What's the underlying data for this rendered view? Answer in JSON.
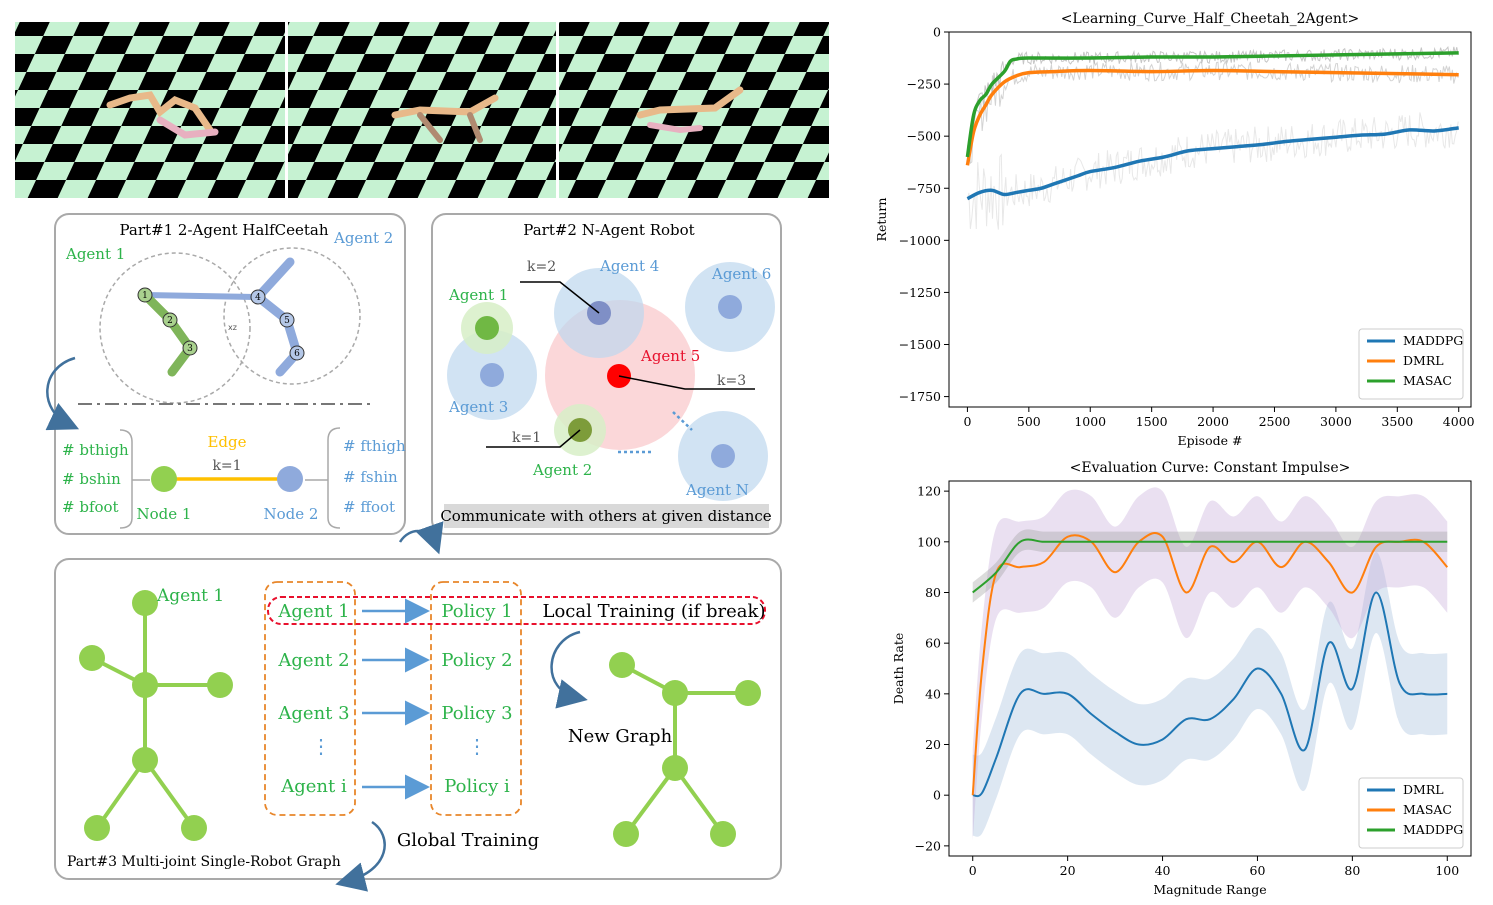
{
  "part1": {
    "title": "Part#1 2-Agent HalfCeetah",
    "agent1": "Agent 1",
    "agent2": "Agent 2",
    "joints": [
      "1",
      "2",
      "3",
      "4",
      "5",
      "6"
    ],
    "xz": "xz",
    "edge": "Edge",
    "k": "k=1",
    "node1": "Node 1",
    "node2": "Node 2",
    "left_feats": [
      "# bthigh",
      "# bshin",
      "# bfoot"
    ],
    "right_feats": [
      "# fthigh",
      "# fshin",
      "# ffoot"
    ]
  },
  "part2": {
    "title": "Part#2 N-Agent Robot",
    "agents": [
      "Agent 1",
      "Agent 2",
      "Agent 3",
      "Agent 4",
      "Agent 5",
      "Agent 6",
      "Agent N"
    ],
    "k_labels": [
      "k=2",
      "k=3",
      "k=1"
    ],
    "caption": "Communicate with others at given distance"
  },
  "part3": {
    "title": "Part#3 Multi-joint Single-Robot Graph",
    "graph_agent": "Agent 1",
    "agents": [
      "Agent 1",
      "Agent 2",
      "Agent 3",
      "Agent i"
    ],
    "policies": [
      "Policy 1",
      "Policy 2",
      "Policy 3",
      "Policy i"
    ],
    "dots": "⋮",
    "local_training": "Local Training (if break)",
    "global_training": "Global Training",
    "new_graph": "New Graph"
  },
  "colors": {
    "green": "#2db34a",
    "blue": "#5b9bd5",
    "red": "#e8112d",
    "orange": "#e8862a",
    "edge": "#ffc000",
    "gray_box": "#a9a9a9",
    "node_green": "#92d050",
    "node_blue": "#8faadc",
    "light_green": "#c6f2d2"
  },
  "chart_data": [
    {
      "type": "line",
      "title": "<Learning_Curve_Half_Cheetah_2Agent>",
      "xlabel": "Episode #",
      "ylabel": "Return",
      "xlim": [
        -150,
        4100
      ],
      "ylim": [
        -1800,
        0
      ],
      "xticks": [
        0,
        500,
        1000,
        1500,
        2000,
        2500,
        3000,
        3500,
        4000
      ],
      "yticks": [
        0,
        -250,
        -500,
        -750,
        -1000,
        -1250,
        -1500,
        -1750
      ],
      "legend_position": "lower-right",
      "grid": false,
      "series": [
        {
          "name": "MADDPG",
          "color": "#1f77b4",
          "x": [
            0,
            100,
            200,
            300,
            400,
            500,
            600,
            700,
            800,
            900,
            1000,
            1200,
            1400,
            1600,
            1800,
            2000,
            2200,
            2400,
            2600,
            2800,
            3000,
            3200,
            3400,
            3600,
            3800,
            4000
          ],
          "y": [
            -800,
            -770,
            -760,
            -780,
            -770,
            -760,
            -750,
            -730,
            -710,
            -690,
            -670,
            -650,
            -620,
            -600,
            -570,
            -560,
            -550,
            -540,
            -525,
            -515,
            -505,
            -495,
            -490,
            -470,
            -475,
            -460
          ]
        },
        {
          "name": "DMRL",
          "color": "#ff7f0e",
          "x": [
            0,
            50,
            100,
            150,
            200,
            300,
            400,
            500,
            700,
            1000,
            1500,
            2000,
            2500,
            3000,
            3500,
            4000
          ],
          "y": [
            -640,
            -480,
            -400,
            -350,
            -300,
            -240,
            -210,
            -195,
            -190,
            -185,
            -190,
            -185,
            -190,
            -195,
            -200,
            -205
          ]
        },
        {
          "name": "MASAC",
          "color": "#2ca02c",
          "x": [
            0,
            50,
            100,
            150,
            200,
            300,
            350,
            400,
            500,
            1000,
            1500,
            2000,
            2500,
            3000,
            3500,
            4000
          ],
          "y": [
            -600,
            -400,
            -330,
            -300,
            -250,
            -190,
            -140,
            -130,
            -125,
            -125,
            -120,
            -120,
            -115,
            -110,
            -105,
            -100
          ]
        }
      ]
    },
    {
      "type": "line",
      "title": "<Evaluation Curve: Constant Impulse>",
      "xlabel": "Magnitude Range",
      "ylabel": "Death Rate",
      "xlim": [
        -5,
        105
      ],
      "ylim": [
        -24,
        124
      ],
      "xticks": [
        0,
        20,
        40,
        60,
        80,
        100
      ],
      "yticks": [
        -20,
        0,
        20,
        40,
        60,
        80,
        100,
        120
      ],
      "legend_position": "lower-right",
      "grid": false,
      "series": [
        {
          "name": "DMRL",
          "color": "#1f77b4",
          "x": [
            0,
            2,
            5,
            10,
            15,
            20,
            25,
            30,
            35,
            40,
            45,
            50,
            55,
            60,
            65,
            70,
            75,
            80,
            85,
            90,
            95,
            100
          ],
          "y": [
            0,
            1,
            15,
            40,
            40,
            40,
            32,
            25,
            20,
            22,
            30,
            30,
            38,
            50,
            40,
            18,
            60,
            42,
            80,
            44,
            40,
            40
          ]
        },
        {
          "name": "MASAC",
          "color": "#ff7f0e",
          "x": [
            0,
            2,
            5,
            10,
            15,
            20,
            25,
            30,
            35,
            40,
            45,
            50,
            55,
            60,
            65,
            70,
            75,
            80,
            85,
            90,
            95,
            100
          ],
          "y": [
            0,
            50,
            88,
            90,
            92,
            102,
            100,
            88,
            100,
            102,
            80,
            98,
            92,
            100,
            90,
            100,
            92,
            80,
            98,
            100,
            100,
            90
          ]
        },
        {
          "name": "MADDPG",
          "color": "#2ca02c",
          "x": [
            0,
            5,
            10,
            15,
            20,
            30,
            40,
            50,
            60,
            70,
            80,
            90,
            100
          ],
          "y": [
            80,
            88,
            100,
            100,
            100,
            100,
            100,
            100,
            100,
            100,
            100,
            100,
            100
          ]
        }
      ]
    }
  ]
}
